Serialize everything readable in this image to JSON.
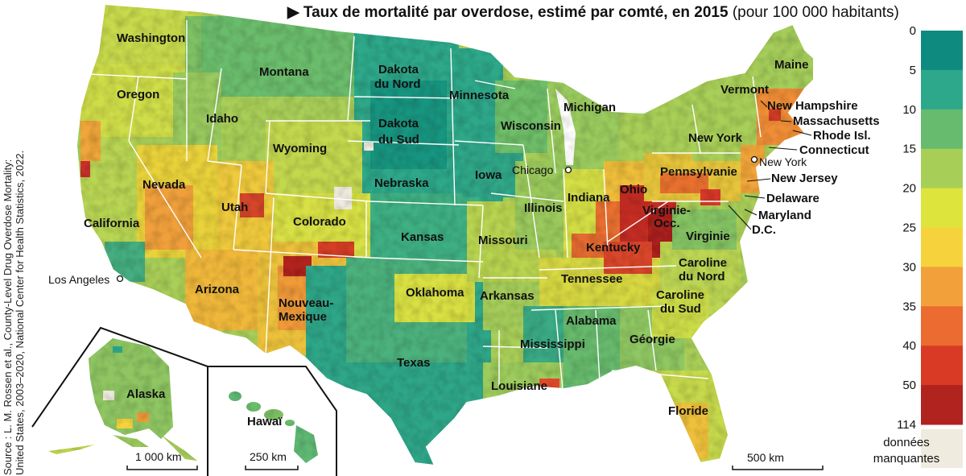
{
  "title": {
    "arrow": "▶",
    "main": "Taux de mortalité par overdose, estimé par comté, en 2015",
    "unit": "(pour 100 000 habitants)"
  },
  "source": {
    "line1": "Source : L. M. Rossen et al., County-Level Drug Overdose Mortality:",
    "line2": "United States, 2003–2020, National Center for Health Statistics, 2022."
  },
  "legend": {
    "ticks": [
      "0",
      "5",
      "10",
      "15",
      "20",
      "25",
      "30",
      "35",
      "40",
      "50",
      "114"
    ],
    "colors": [
      "#0f8a7e",
      "#2ea88a",
      "#66bb6e",
      "#a7cf58",
      "#dde43c",
      "#f6d33c",
      "#f2a13a",
      "#ec6b30",
      "#d93a25",
      "#b0231f"
    ],
    "missing_color": "#f0ebdf",
    "missing_label_1": "données",
    "missing_label_2": "manquantes"
  },
  "states": [
    "Washington",
    "Montana",
    "Oregon",
    "Idaho",
    "Dakota",
    "du Nord",
    "Minnesota",
    "Michigan",
    "Dakota",
    "du Sud",
    "Wisconsin",
    "Wyoming",
    "Maine",
    "Vermont",
    "New Hampshire",
    "Massachusetts",
    "Rhode Isl.",
    "New York",
    "Connecticut",
    "Nevada",
    "Nebraska",
    "Iowa",
    "Pennsylvanie",
    "New Jersey",
    "Utah",
    "Indiana",
    "Ohio",
    "Delaware",
    "Illinois",
    "Virginie-",
    "Occ.",
    "Maryland",
    "California",
    "Colorado",
    "D.C.",
    "Kansas",
    "Missouri",
    "Kentucky",
    "Virginie",
    "Caroline",
    "du Nord",
    "Tennessee",
    "Arizona",
    "Oklahoma",
    "Arkansas",
    "Caroline",
    "du Sud",
    "Nouveau-",
    "Mexique",
    "Alabama",
    "Mississippi",
    "Géorgie",
    "Texas",
    "Louisiane",
    "Floride",
    "Alaska",
    "Hawaï"
  ],
  "cities": [
    "Chicago",
    "New York",
    "Los Angeles"
  ],
  "scale_bars": [
    "1 000 km",
    "250 km",
    "500 km"
  ]
}
